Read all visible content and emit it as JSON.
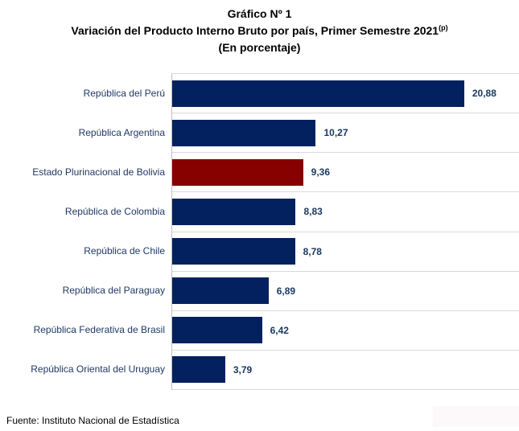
{
  "title": {
    "line1": "Gráfico Nº 1",
    "line2": "Variación del Producto Interno Bruto por país, Primer Semestre 2021",
    "line2_superscript": "(p)",
    "line3": "(En porcentaje)"
  },
  "source_note": "Fuente: Instituto Nacional de Estadística",
  "colors": {
    "bar": "#02215e",
    "highlight_bar": "#870100",
    "category_text": "#1f3864",
    "value_text": "#17375e",
    "gridline": "#d9d9d9",
    "axis_line": "#bfbfbf",
    "title_text": "#000000"
  },
  "chart_data": {
    "type": "bar",
    "orientation": "horizontal",
    "title": "Gráfico Nº 1 — Variación del Producto Interno Bruto por país, Primer Semestre 2021(p) (En porcentaje)",
    "xlabel": "",
    "ylabel": "",
    "legend": "none",
    "grid": "category-separator horizontal gridlines",
    "xlim": [
      0,
      24.8
    ],
    "categories": [
      "República del Perú",
      "República Argentina",
      "Estado Plurinacional de Bolivia",
      "República de Colombia",
      "República de Chile",
      "República del Paraguay",
      "República Federativa de Brasil",
      "República Oriental del Uruguay"
    ],
    "values": [
      20.88,
      10.27,
      9.36,
      8.83,
      8.78,
      6.89,
      6.42,
      3.79
    ],
    "value_labels": [
      "20,88",
      "10,27",
      "9,36",
      "8,83",
      "8,78",
      "6,89",
      "6,42",
      "3,79"
    ],
    "highlight_index": 2
  }
}
